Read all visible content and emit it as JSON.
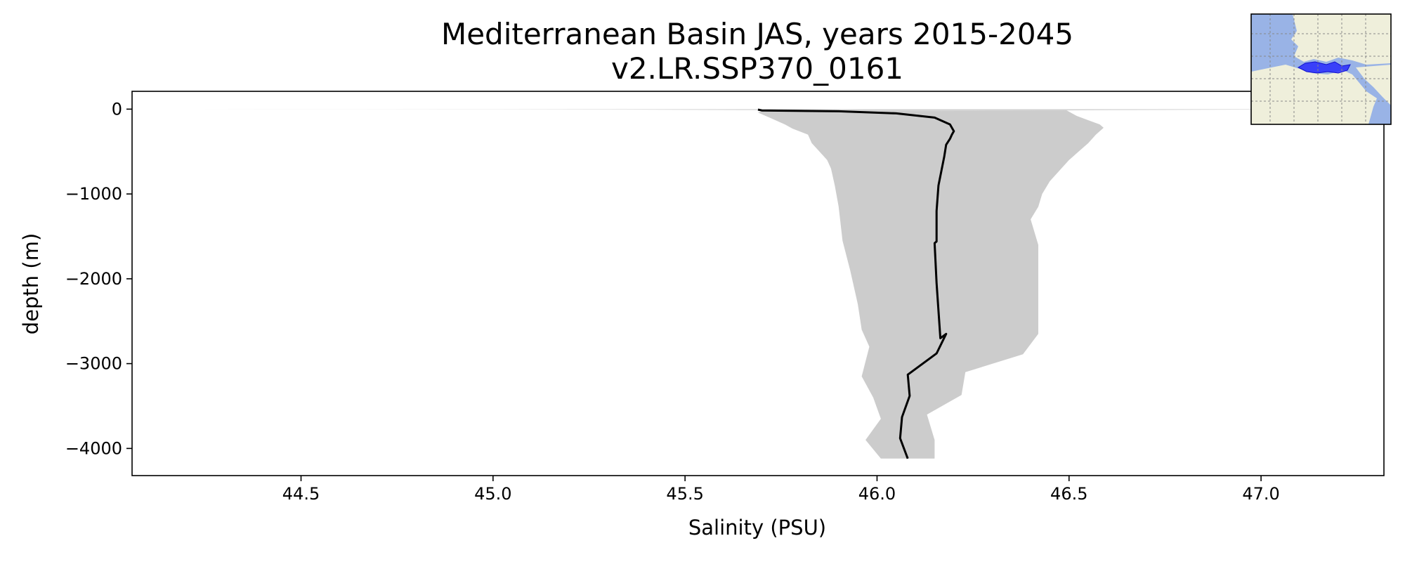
{
  "chart_data": {
    "type": "area",
    "title": "Mediterranean Basin JAS, years 2015-2045",
    "subtitle": "v2.LR.SSP370_0161",
    "xlabel": "Salinity (PSU)",
    "ylabel": "depth (m)",
    "xlim": [
      44.06,
      47.32
    ],
    "ylim": [
      -4320,
      210
    ],
    "x_ticks": [
      44.5,
      45.0,
      45.5,
      46.0,
      46.5,
      47.0
    ],
    "x_tick_labels": [
      "44.5",
      "45.0",
      "45.5",
      "46.0",
      "46.5",
      "47.0"
    ],
    "y_ticks": [
      0,
      -1000,
      -2000,
      -3000,
      -4000
    ],
    "y_tick_labels": [
      "0",
      "−1000",
      "−2000",
      "−3000",
      "−4000"
    ],
    "grid": false,
    "series": [
      {
        "kind": "line",
        "color": "#000000",
        "points": [
          [
            45.69,
            -5
          ],
          [
            45.7,
            -15
          ],
          [
            45.9,
            -25
          ],
          [
            46.05,
            -50
          ],
          [
            46.15,
            -100
          ],
          [
            46.19,
            -180
          ],
          [
            46.2,
            -260
          ],
          [
            46.195,
            -300
          ],
          [
            46.19,
            -350
          ],
          [
            46.18,
            -420
          ],
          [
            46.175,
            -560
          ],
          [
            46.16,
            -900
          ],
          [
            46.155,
            -1200
          ],
          [
            46.155,
            -1560
          ],
          [
            46.15,
            -1580
          ],
          [
            46.155,
            -2050
          ],
          [
            46.165,
            -2700
          ],
          [
            46.18,
            -2650
          ],
          [
            46.155,
            -2880
          ],
          [
            46.08,
            -3130
          ],
          [
            46.085,
            -3380
          ],
          [
            46.065,
            -3630
          ],
          [
            46.06,
            -3880
          ],
          [
            46.08,
            -4120
          ]
        ]
      },
      {
        "kind": "band",
        "color": "#cccccc",
        "lower": [
          [
            45.69,
            0
          ],
          [
            45.7,
            -5
          ],
          [
            45.7,
            -20
          ],
          [
            45.69,
            -40
          ],
          [
            45.7,
            -60
          ],
          [
            45.71,
            -80
          ],
          [
            45.72,
            -100
          ],
          [
            45.74,
            -140
          ],
          [
            45.76,
            -180
          ],
          [
            45.78,
            -230
          ],
          [
            45.82,
            -300
          ],
          [
            45.83,
            -400
          ],
          [
            45.85,
            -500
          ],
          [
            45.87,
            -600
          ],
          [
            45.88,
            -700
          ],
          [
            45.89,
            -900
          ],
          [
            45.9,
            -1150
          ],
          [
            45.91,
            -1550
          ],
          [
            45.93,
            -1900
          ],
          [
            45.95,
            -2300
          ],
          [
            45.96,
            -2600
          ],
          [
            45.98,
            -2800
          ],
          [
            45.96,
            -3150
          ],
          [
            45.99,
            -3400
          ],
          [
            46.01,
            -3650
          ],
          [
            45.97,
            -3900
          ],
          [
            46.01,
            -4120
          ]
        ],
        "upper": [
          [
            45.7,
            0
          ],
          [
            46.49,
            -5
          ],
          [
            46.52,
            -80
          ],
          [
            46.55,
            -130
          ],
          [
            46.58,
            -180
          ],
          [
            46.59,
            -220
          ],
          [
            46.57,
            -300
          ],
          [
            46.55,
            -400
          ],
          [
            46.52,
            -520
          ],
          [
            46.5,
            -600
          ],
          [
            46.48,
            -700
          ],
          [
            46.45,
            -850
          ],
          [
            46.43,
            -1000
          ],
          [
            46.42,
            -1150
          ],
          [
            46.4,
            -1300
          ],
          [
            46.42,
            -1600
          ],
          [
            46.42,
            -1900
          ],
          [
            46.42,
            -2300
          ],
          [
            46.42,
            -2650
          ],
          [
            46.38,
            -2890
          ],
          [
            46.23,
            -3100
          ],
          [
            46.22,
            -3370
          ],
          [
            46.13,
            -3600
          ],
          [
            46.15,
            -3900
          ],
          [
            46.15,
            -4120
          ]
        ]
      },
      {
        "kind": "wisp",
        "color": "#d4d4d4",
        "points": [
          [
            44.23,
            0
          ],
          [
            45.0,
            -2
          ],
          [
            45.4,
            -6
          ],
          [
            45.7,
            -12
          ],
          [
            45.9,
            -18
          ],
          [
            46.0,
            -22
          ],
          [
            46.1,
            -25
          ],
          [
            46.3,
            -20
          ],
          [
            46.6,
            -12
          ],
          [
            47.0,
            -5
          ],
          [
            47.25,
            0
          ],
          [
            46.8,
            0
          ],
          [
            46.2,
            0
          ],
          [
            45.5,
            0
          ],
          [
            44.8,
            0
          ]
        ]
      }
    ]
  },
  "inset_map": {
    "description_label": "region-map",
    "ocean_color": "#99b3e6",
    "land_color": "#efefdb",
    "region_color": "#1a1aff"
  }
}
